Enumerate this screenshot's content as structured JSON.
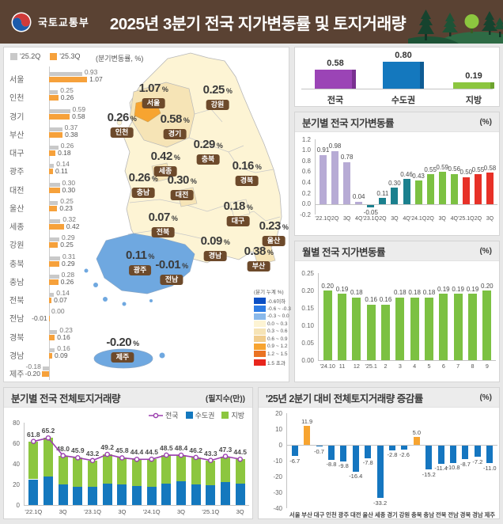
{
  "header": {
    "agency": "국토교통부",
    "title": "2025년 3분기 전국 지가변동률 및 토지거래량"
  },
  "region_panel": {
    "legend": [
      {
        "label": "'25.2Q",
        "color": "#c9c9c9"
      },
      {
        "label": "'25.3Q",
        "color": "#f6a13b"
      }
    ],
    "unit_label": "(분기변동률, %)"
  },
  "map": {
    "legend_title": "(분기 누계 %)",
    "legend_items": [
      {
        "label": "-0.6이하",
        "color": "#0b4fc4"
      },
      {
        "label": "-0.6 ~ -0.3",
        "color": "#2e7ce4"
      },
      {
        "label": "-0.3 ~ 0.0",
        "color": "#8ab9ea"
      },
      {
        "label": "0.0 ~ 0.3",
        "color": "#fdf4d4"
      },
      {
        "label": "0.3 ~ 0.6",
        "color": "#f6e4b6"
      },
      {
        "label": "0.6 ~ 0.9",
        "color": "#f1cd8d"
      },
      {
        "label": "0.9 ~ 1.2",
        "color": "#f7a430"
      },
      {
        "label": "1.2 ~ 1.5",
        "color": "#ea7323"
      },
      {
        "label": "1.5 초과",
        "color": "#e8261d"
      }
    ],
    "labels": [
      {
        "name": "서울",
        "value": "1.07"
      },
      {
        "name": "강원",
        "value": "0.25"
      },
      {
        "name": "인천",
        "value": "0.26"
      },
      {
        "name": "경기",
        "value": "0.58"
      },
      {
        "name": "충북",
        "value": "0.29"
      },
      {
        "name": "세종",
        "value": "0.42"
      },
      {
        "name": "경북",
        "value": "0.16"
      },
      {
        "name": "충남",
        "value": "0.26"
      },
      {
        "name": "대전",
        "value": "0.30"
      },
      {
        "name": "대구",
        "value": "0.18"
      },
      {
        "name": "전북",
        "value": "0.07"
      },
      {
        "name": "울산",
        "value": "0.23"
      },
      {
        "name": "경남",
        "value": "0.09"
      },
      {
        "name": "부산",
        "value": "0.38"
      },
      {
        "name": "광주",
        "value": "0.11"
      },
      {
        "name": "전남",
        "value": "-0.01"
      },
      {
        "name": "제주",
        "value": "-0.20"
      }
    ]
  },
  "chart_data": [
    {
      "id": "region_quarterly_change",
      "type": "bar",
      "orientation": "horizontal",
      "unit": "(분기변동률, %)",
      "categories": [
        "서울",
        "인천",
        "경기",
        "부산",
        "대구",
        "광주",
        "대전",
        "울산",
        "세종",
        "강원",
        "충북",
        "충남",
        "전북",
        "전남",
        "경북",
        "경남",
        "제주"
      ],
      "series": [
        {
          "name": "'25.2Q",
          "color": "#c9c9c9",
          "values": [
            0.93,
            0.25,
            0.59,
            0.37,
            0.26,
            0.14,
            0.3,
            0.25,
            0.32,
            0.29,
            0.31,
            0.28,
            0.14,
            0.0,
            0.23,
            0.16,
            -0.18
          ]
        },
        {
          "name": "'25.3Q",
          "color": "#f6a13b",
          "values": [
            1.07,
            0.26,
            0.58,
            0.38,
            0.18,
            0.11,
            0.3,
            0.23,
            0.42,
            0.25,
            0.29,
            0.26,
            0.07,
            -0.01,
            0.16,
            0.09,
            -0.2
          ]
        }
      ]
    },
    {
      "id": "summary_3q",
      "type": "bar",
      "categories": [
        "전국",
        "수도권",
        "지방"
      ],
      "values": [
        0.58,
        0.8,
        0.19
      ],
      "colors": [
        "#9b44b6",
        "#1478be",
        "#8cc63f"
      ]
    },
    {
      "id": "quarterly_national",
      "type": "bar",
      "title": "분기별 전국 지가변동률",
      "unit": "(%)",
      "categories": [
        "'22.1Q",
        "2Q",
        "3Q",
        "4Q",
        "'23.1Q",
        "2Q",
        "3Q",
        "4Q",
        "'24.1Q",
        "2Q",
        "3Q",
        "4Q",
        "'25.1Q",
        "2Q",
        "3Q"
      ],
      "values": [
        0.91,
        0.98,
        0.78,
        0.04,
        -0.05,
        0.11,
        0.3,
        0.46,
        0.43,
        0.55,
        0.59,
        0.56,
        0.5,
        0.55,
        0.58
      ],
      "ylim": [
        -0.2,
        1.2
      ],
      "yticks": [
        "1.2",
        "1.0",
        "0.8",
        "0.6",
        "0.4",
        "0.2",
        "0.0",
        "-0.2"
      ],
      "year_colors": [
        "#b7abd5",
        "#1b808e",
        "#7cc142",
        "#e73128"
      ]
    },
    {
      "id": "monthly_national",
      "type": "bar",
      "title": "월별 전국 지가변동률",
      "unit": "(%)",
      "categories": [
        "'24.10",
        "11",
        "12",
        "'25.1",
        "2",
        "3",
        "4",
        "5",
        "6",
        "7",
        "8",
        "9"
      ],
      "values": [
        0.2,
        0.19,
        0.18,
        0.16,
        0.16,
        0.18,
        0.18,
        0.18,
        0.19,
        0.19,
        0.19,
        0.2
      ],
      "ylim": [
        0,
        0.25
      ],
      "yticks": [
        "0.25",
        "0.20",
        "0.15",
        "0.10",
        "0.05",
        "0.00"
      ],
      "color": "#7cc142"
    },
    {
      "id": "quarterly_transactions",
      "type": "combo",
      "title": "분기별 전국 전체토지거래량",
      "unit": "(필지수(만))",
      "categories": [
        "'22.1Q",
        "2Q",
        "3Q",
        "4Q",
        "'23.1Q",
        "2Q",
        "3Q",
        "4Q",
        "'24.1Q",
        "2Q",
        "3Q",
        "4Q",
        "'25.1Q",
        "2Q",
        "3Q"
      ],
      "series": [
        {
          "name": "전국",
          "type": "line",
          "color": "#9b3fae",
          "values": [
            61.8,
            65.2,
            48.0,
            45.9,
            43.2,
            49.2,
            45.8,
            44.4,
            44.5,
            48.5,
            48.4,
            46.2,
            43.3,
            47.3,
            44.5
          ]
        },
        {
          "name": "수도권",
          "type": "bar",
          "color": "#1478be",
          "values": [
            25.0,
            27.5,
            20.0,
            18.0,
            17.5,
            21.0,
            20.0,
            18.5,
            18.0,
            21.0,
            23.0,
            20.0,
            19.5,
            22.0,
            21.0
          ]
        },
        {
          "name": "지방",
          "type": "bar",
          "color": "#8cc63f",
          "values": [
            36.8,
            37.7,
            28.0,
            27.9,
            25.7,
            28.2,
            25.8,
            25.9,
            26.5,
            27.5,
            25.4,
            26.2,
            23.8,
            25.3,
            23.5
          ]
        }
      ],
      "ylim": [
        0,
        80
      ],
      "yticks": [
        "80",
        "60",
        "40",
        "20",
        "0"
      ]
    },
    {
      "id": "transaction_change_vs_2q",
      "type": "bar",
      "title": "'25년 2분기 대비 전체토지거래량 증감률",
      "unit": "(%)",
      "categories": [
        "서울",
        "부산",
        "대구",
        "인천",
        "광주",
        "대전",
        "울산",
        "세종",
        "경기",
        "강원",
        "충북",
        "충남",
        "전북",
        "전남",
        "경북",
        "경남",
        "제주"
      ],
      "values": [
        -6.7,
        11.9,
        -0.7,
        -8.8,
        -9.8,
        -16.4,
        -7.8,
        -33.2,
        -2.8,
        -2.6,
        5.0,
        -15.2,
        -11.4,
        -10.8,
        -8.7,
        -7.2,
        -11.0
      ],
      "ylim": [
        -40,
        20
      ],
      "yticks": [
        "20",
        "10",
        "0",
        "-10",
        "-20",
        "-30",
        "-40"
      ],
      "positive_color": "#f7a430",
      "negative_color": "#1576c0"
    }
  ]
}
